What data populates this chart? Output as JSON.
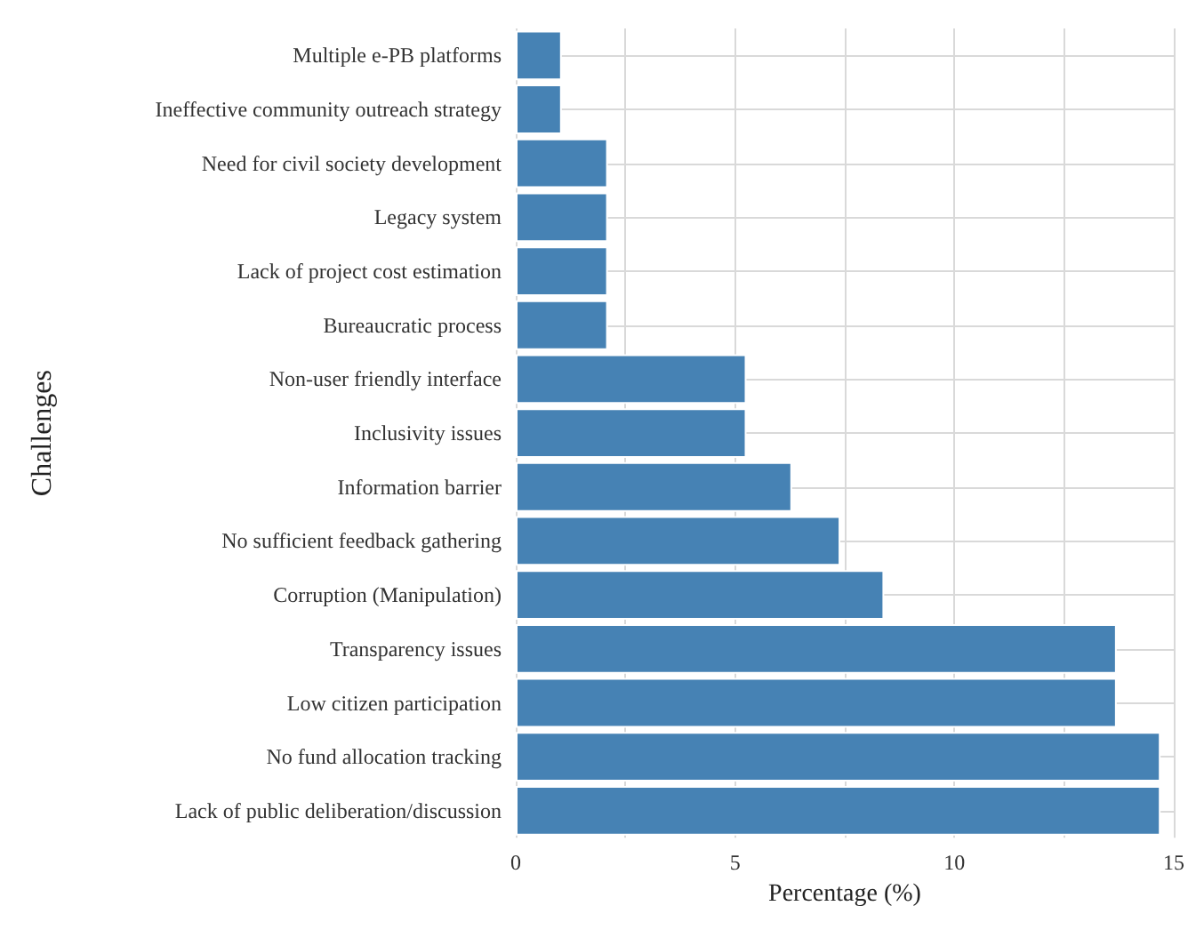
{
  "chart_data": {
    "type": "bar",
    "orientation": "horizontal",
    "xlabel": "Percentage (%)",
    "ylabel": "Challenges",
    "categories": [
      "Multiple e-PB platforms",
      "Ineffective community outreach strategy",
      "Need for civil society development",
      "Legacy system",
      "Lack of project cost estimation",
      "Bureaucratic process",
      "Non-user friendly interface",
      "Inclusivity issues",
      "Information barrier",
      "No sufficient feedback gathering",
      "Corruption (Manipulation)",
      "Transparency issues",
      "Low citizen participation",
      "No fund allocation tracking",
      "Lack of public deliberation/discussion"
    ],
    "values": [
      1.05,
      1.05,
      2.1,
      2.1,
      2.1,
      2.1,
      5.26,
      5.26,
      6.3,
      7.4,
      8.4,
      13.7,
      13.7,
      14.7,
      14.7
    ],
    "color": "#4682b4",
    "xlim": [
      0,
      15
    ],
    "xticks": [
      0,
      {
        "value": 2.5,
        "label": null
      },
      5,
      {
        "value": 7.5,
        "label": null
      },
      10,
      {
        "value": 12.5,
        "label": null
      },
      15
    ],
    "grid": true
  }
}
